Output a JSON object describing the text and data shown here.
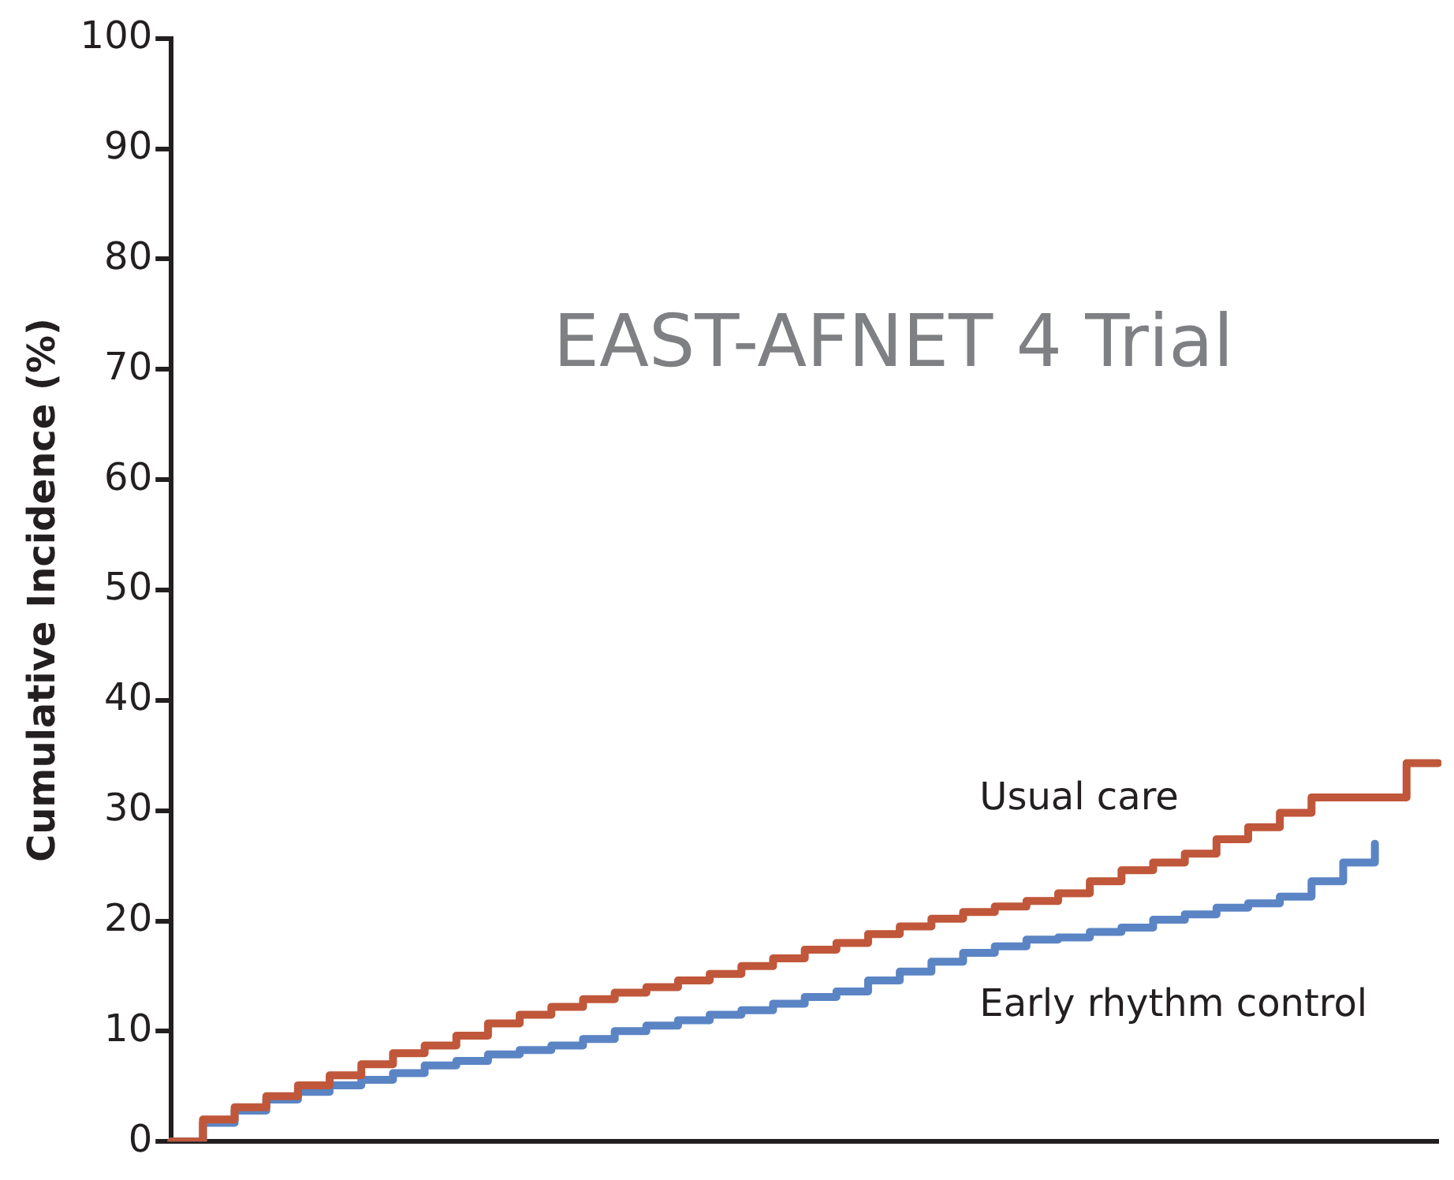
{
  "chart_data": {
    "type": "step",
    "title": "EAST-AFNET 4 Trial",
    "ylabel": "Cumulative Incidence (%)",
    "categories": [
      null,
      null,
      null,
      null,
      null,
      null,
      null,
      null,
      null,
      null,
      null,
      null,
      null,
      null,
      null,
      null,
      null,
      null,
      null,
      null,
      null,
      null,
      null,
      null,
      null,
      null,
      null,
      null,
      null,
      null,
      null,
      null,
      null,
      null,
      null,
      null,
      null,
      null,
      null,
      null,
      null
    ],
    "series": [
      {
        "name": "Usual care",
        "color": "#c0573a",
        "values": [
          0,
          2,
          3.1,
          4.1,
          5.1,
          6,
          7,
          8,
          8.7,
          9.6,
          10.7,
          11.5,
          12.2,
          12.9,
          13.5,
          14,
          14.6,
          15.2,
          15.9,
          16.6,
          17.4,
          18,
          18.8,
          19.5,
          20.2,
          20.8,
          21.3,
          21.8,
          22.5,
          23.6,
          24.6,
          25.3,
          26.1,
          27.4,
          28.5,
          29.8,
          31.2,
          31.2,
          31.2,
          34.3,
          34.3
        ]
      },
      {
        "name": "Early rhythm control",
        "color": "#5b84c4",
        "values": [
          0,
          1.7,
          2.8,
          3.8,
          4.5,
          5.1,
          5.6,
          6.2,
          6.9,
          7.3,
          7.9,
          8.3,
          8.7,
          9.3,
          10,
          10.5,
          11,
          11.5,
          11.9,
          12.5,
          13.1,
          13.6,
          14.6,
          15.4,
          16.3,
          17.1,
          17.7,
          18.3,
          18.5,
          19,
          19.4,
          20.1,
          20.6,
          21.2,
          21.6,
          22.2,
          23.6,
          25.3,
          27,
          null,
          null
        ]
      }
    ],
    "ylim": [
      0,
      100
    ],
    "yticks": [
      0,
      10,
      20,
      30,
      40,
      50,
      60,
      70,
      80,
      90,
      100
    ],
    "grid": false,
    "legend": false
  }
}
